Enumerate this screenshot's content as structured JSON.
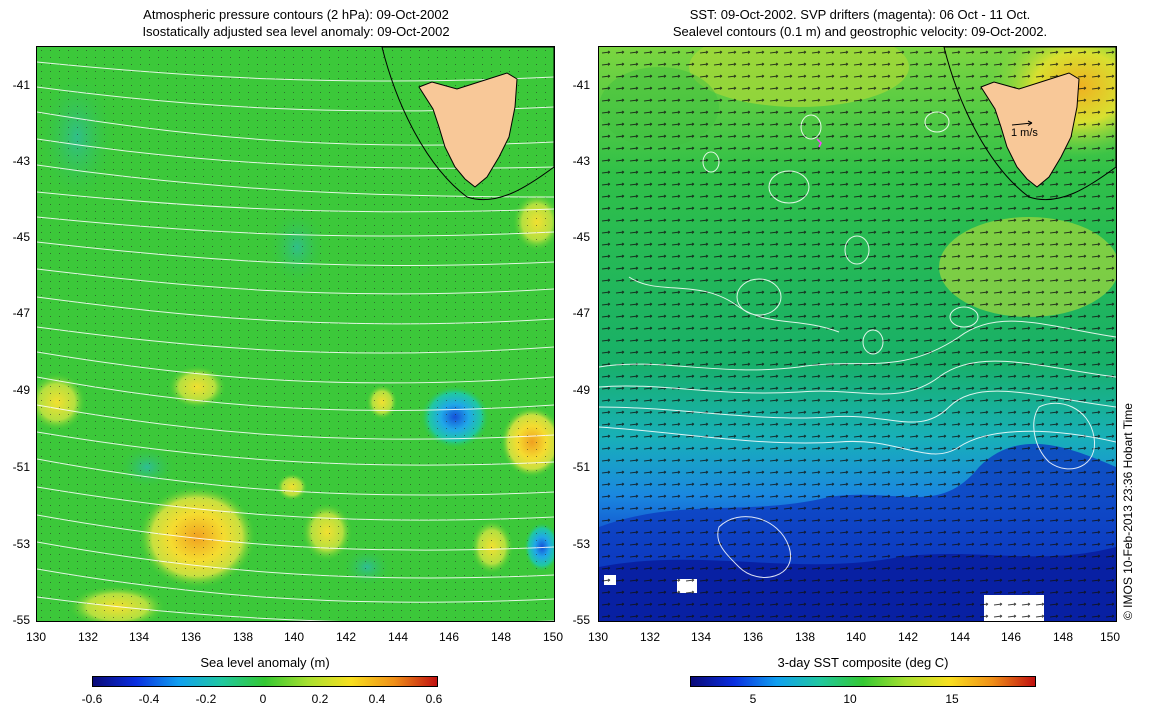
{
  "left_panel": {
    "title_line1": "Atmospheric pressure contours (2 hPa): 09-Oct-2002",
    "title_line2": "Isostatically adjusted sea level anomaly: 09-Oct-2002",
    "colorbar": {
      "title": "Sea level anomaly (m)",
      "ticks": [
        "-0.6",
        "-0.4",
        "-0.2",
        "0",
        "0.2",
        "0.4",
        "0.6"
      ]
    }
  },
  "right_panel": {
    "title_line1": "SST: 09-Oct-2002. SVP drifters (magenta): 06 Oct - 11 Oct.",
    "title_line2": "Sealevel contours (0.1 m) and geostrophic velocity: 09-Oct-2002.",
    "velocity_scale_label": "1 m/s",
    "colorbar": {
      "title": "3-day SST composite (deg C)",
      "ticks": [
        "5",
        "10",
        "15"
      ]
    }
  },
  "axes": {
    "y_ticks": [
      "-41",
      "-43",
      "-45",
      "-47",
      "-49",
      "-51",
      "-53",
      "-55"
    ],
    "x_ticks": [
      "130",
      "132",
      "134",
      "136",
      "138",
      "140",
      "142",
      "144",
      "146",
      "148",
      "150"
    ]
  },
  "credit": "© IMOS 10-Feb-2013 23:36 Hobart Time",
  "colors": {
    "land": "#f8c898",
    "coast_line": "#000000",
    "contour_line": "#ffffff",
    "sla_background": "#34c832",
    "sst_background": "#1fb85a"
  }
}
